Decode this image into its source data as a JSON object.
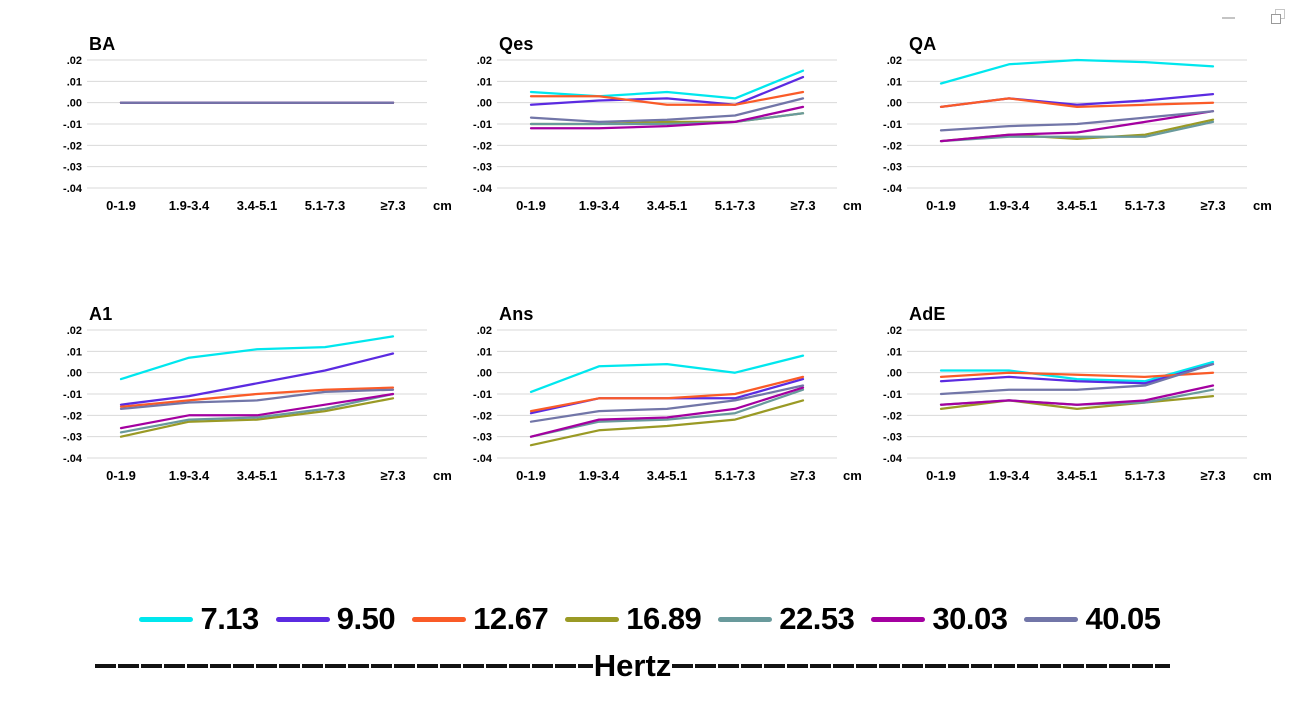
{
  "window_controls": {
    "minimize_icon": "minimize-dash",
    "restore_icon": "restore-overlapping-squares"
  },
  "axis": {
    "y_tick_labels": [
      ".02",
      ".01",
      ".00",
      "-.01",
      "-.02",
      "-.03",
      "-.04"
    ],
    "y_tick_values": [
      0.02,
      0.01,
      0.0,
      -0.01,
      -0.02,
      -0.03,
      -0.04
    ],
    "x_categories": [
      "0-1.9",
      "1.9-3.4",
      "3.4-5.1",
      "5.1-7.3",
      "≥7.3"
    ],
    "x_unit_label": "cm",
    "ylim": [
      -0.04,
      0.02
    ],
    "grid": "horizontal"
  },
  "chart_data": [
    {
      "type": "line",
      "title": "BA",
      "title_color": "#7f7f7f",
      "series": [
        {
          "name": "7.13",
          "values": [
            0.0,
            0.0,
            0.0,
            0.0,
            0.0
          ]
        },
        {
          "name": "9.50",
          "values": [
            0.0,
            0.0,
            0.0,
            0.0,
            0.0
          ]
        },
        {
          "name": "12.67",
          "values": [
            0.0,
            0.0,
            0.0,
            0.0,
            0.0
          ]
        },
        {
          "name": "16.89",
          "values": [
            0.0,
            0.0,
            0.0,
            0.0,
            0.0
          ]
        },
        {
          "name": "22.53",
          "values": [
            0.0,
            0.0,
            0.0,
            0.0,
            0.0
          ]
        },
        {
          "name": "30.03",
          "values": [
            0.0,
            0.0,
            0.0,
            0.0,
            0.0
          ]
        },
        {
          "name": "40.05",
          "values": [
            0.0,
            0.0,
            0.0,
            0.0,
            0.0
          ]
        }
      ]
    },
    {
      "type": "line",
      "title": "Qes",
      "title_color": "#000000",
      "series": [
        {
          "name": "7.13",
          "values": [
            0.005,
            0.003,
            0.005,
            0.002,
            0.015
          ]
        },
        {
          "name": "9.50",
          "values": [
            -0.001,
            0.001,
            0.002,
            -0.001,
            0.012
          ]
        },
        {
          "name": "12.67",
          "values": [
            0.003,
            0.003,
            -0.001,
            -0.001,
            0.005
          ]
        },
        {
          "name": "16.89",
          "values": [
            -0.01,
            -0.01,
            -0.009,
            -0.009,
            -0.005
          ]
        },
        {
          "name": "22.53",
          "values": [
            -0.01,
            -0.01,
            -0.01,
            -0.009,
            -0.005
          ]
        },
        {
          "name": "30.03",
          "values": [
            -0.012,
            -0.012,
            -0.011,
            -0.009,
            -0.002
          ]
        },
        {
          "name": "40.05",
          "values": [
            -0.007,
            -0.009,
            -0.008,
            -0.006,
            0.002
          ]
        }
      ]
    },
    {
      "type": "line",
      "title": "QA",
      "title_color": "#000000",
      "series": [
        {
          "name": "7.13",
          "values": [
            0.009,
            0.018,
            0.02,
            0.019,
            0.017
          ]
        },
        {
          "name": "9.50",
          "values": [
            -0.002,
            0.002,
            -0.001,
            0.001,
            0.004
          ]
        },
        {
          "name": "12.67",
          "values": [
            -0.002,
            0.002,
            -0.002,
            -0.001,
            0.0
          ]
        },
        {
          "name": "16.89",
          "values": [
            -0.018,
            -0.015,
            -0.017,
            -0.015,
            -0.008
          ]
        },
        {
          "name": "22.53",
          "values": [
            -0.018,
            -0.016,
            -0.016,
            -0.016,
            -0.009
          ]
        },
        {
          "name": "30.03",
          "values": [
            -0.018,
            -0.015,
            -0.014,
            -0.009,
            -0.004
          ]
        },
        {
          "name": "40.05",
          "values": [
            -0.013,
            -0.011,
            -0.01,
            -0.007,
            -0.004
          ]
        }
      ]
    },
    {
      "type": "line",
      "title": "A1",
      "title_color": "#000000",
      "series": [
        {
          "name": "7.13",
          "values": [
            -0.003,
            0.007,
            0.011,
            0.012,
            0.017
          ]
        },
        {
          "name": "9.50",
          "values": [
            -0.015,
            -0.011,
            -0.005,
            0.001,
            0.009
          ]
        },
        {
          "name": "12.67",
          "values": [
            -0.016,
            -0.013,
            -0.01,
            -0.008,
            -0.007
          ]
        },
        {
          "name": "16.89",
          "values": [
            -0.03,
            -0.023,
            -0.022,
            -0.018,
            -0.012
          ]
        },
        {
          "name": "22.53",
          "values": [
            -0.028,
            -0.022,
            -0.021,
            -0.017,
            -0.01
          ]
        },
        {
          "name": "30.03",
          "values": [
            -0.026,
            -0.02,
            -0.02,
            -0.015,
            -0.01
          ]
        },
        {
          "name": "40.05",
          "values": [
            -0.017,
            -0.014,
            -0.013,
            -0.009,
            -0.008
          ]
        }
      ]
    },
    {
      "type": "line",
      "title": "Ans",
      "title_color": "#000000",
      "series": [
        {
          "name": "7.13",
          "values": [
            -0.009,
            0.003,
            0.004,
            0.0,
            0.008
          ]
        },
        {
          "name": "9.50",
          "values": [
            -0.019,
            -0.012,
            -0.012,
            -0.012,
            -0.003
          ]
        },
        {
          "name": "12.67",
          "values": [
            -0.018,
            -0.012,
            -0.012,
            -0.01,
            -0.002
          ]
        },
        {
          "name": "16.89",
          "values": [
            -0.034,
            -0.027,
            -0.025,
            -0.022,
            -0.013
          ]
        },
        {
          "name": "22.53",
          "values": [
            -0.03,
            -0.023,
            -0.022,
            -0.019,
            -0.008
          ]
        },
        {
          "name": "30.03",
          "values": [
            -0.03,
            -0.022,
            -0.021,
            -0.017,
            -0.007
          ]
        },
        {
          "name": "40.05",
          "values": [
            -0.023,
            -0.018,
            -0.017,
            -0.013,
            -0.006
          ]
        }
      ]
    },
    {
      "type": "line",
      "title": "AdE",
      "title_color": "#000000",
      "series": [
        {
          "name": "7.13",
          "values": [
            0.001,
            0.001,
            -0.003,
            -0.004,
            0.005
          ]
        },
        {
          "name": "9.50",
          "values": [
            -0.004,
            -0.002,
            -0.004,
            -0.005,
            0.004
          ]
        },
        {
          "name": "12.67",
          "values": [
            -0.002,
            0.0,
            -0.001,
            -0.002,
            0.0
          ]
        },
        {
          "name": "16.89",
          "values": [
            -0.017,
            -0.013,
            -0.017,
            -0.014,
            -0.011
          ]
        },
        {
          "name": "22.53",
          "values": [
            -0.015,
            -0.013,
            -0.015,
            -0.014,
            -0.008
          ]
        },
        {
          "name": "30.03",
          "values": [
            -0.015,
            -0.013,
            -0.015,
            -0.013,
            -0.006
          ]
        },
        {
          "name": "40.05",
          "values": [
            -0.01,
            -0.008,
            -0.008,
            -0.006,
            0.004
          ]
        }
      ]
    }
  ],
  "legend": {
    "position": "bottom-center",
    "items": [
      {
        "label": "7.13",
        "color": "#00e7ee"
      },
      {
        "label": "9.50",
        "color": "#5b2be1"
      },
      {
        "label": "12.67",
        "color": "#fa5b28"
      },
      {
        "label": "16.89",
        "color": "#9a9a25"
      },
      {
        "label": "22.53",
        "color": "#699a9c"
      },
      {
        "label": "30.03",
        "color": "#a400a0"
      },
      {
        "label": "40.05",
        "color": "#7276a8"
      }
    ],
    "axis_label": "Hertz"
  }
}
